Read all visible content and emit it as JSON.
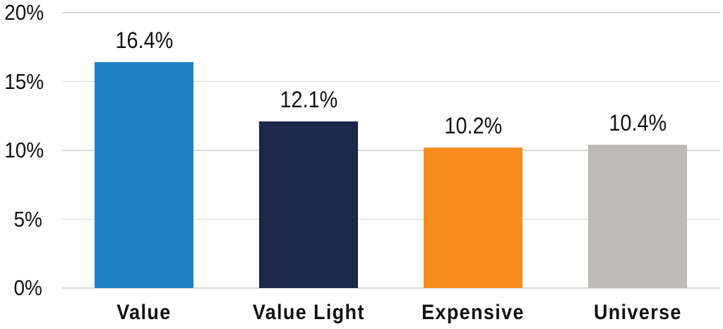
{
  "chart_data": {
    "type": "bar",
    "title": "",
    "xlabel": "",
    "ylabel": "",
    "categories": [
      "Value",
      "Value Light",
      "Expensive",
      "Universe"
    ],
    "values": [
      16.4,
      12.1,
      10.2,
      10.4
    ],
    "data_labels": [
      "16.4%",
      "12.1%",
      "10.2%",
      "10.4%"
    ],
    "bar_colors": [
      "#1B80C4",
      "#1C2648",
      "#F78C1E",
      "#BEBBB5"
    ],
    "ylim": [
      0,
      20
    ],
    "ytick_values": [
      0,
      5,
      10,
      15,
      20
    ],
    "ytick_labels": [
      "0%",
      "5%",
      "10%",
      "15%",
      "20%"
    ],
    "grid": true,
    "gridline_color": "#D9D9D9",
    "text_color": "#111111",
    "background_color": "#FFFFFF",
    "legend": "none",
    "data_label_position": "above-bars"
  }
}
